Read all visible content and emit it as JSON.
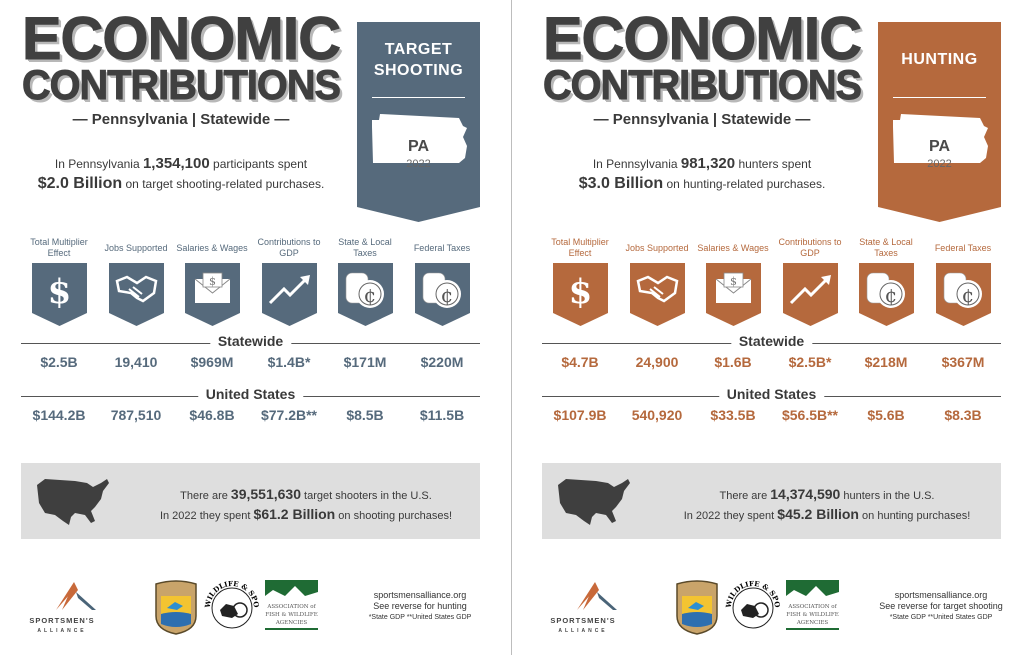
{
  "panels": [
    {
      "id": "target-shooting",
      "accent": "#566a7c",
      "title_line1": "ECONOMIC",
      "title_line2": "CONTRIBUTIONS",
      "subtitle": "— Pennsylvania | Statewide —",
      "intro": {
        "pre": "In Pennsylvania ",
        "count": "1,354,100",
        "mid": " participants spent",
        "amount": "$2.0 Billion",
        "post": " on target shooting-related purchases."
      },
      "banner": {
        "title_lines": [
          "TARGET",
          "SHOOTING"
        ],
        "state": "PA",
        "year": "2022"
      },
      "categories": [
        {
          "label": "Total Multiplier Effect",
          "icon": "dollar-icon"
        },
        {
          "label": "Jobs Supported",
          "icon": "handshake-icon"
        },
        {
          "label": "Salaries & Wages",
          "icon": "envelope-money-icon"
        },
        {
          "label": "Contributions to GDP",
          "icon": "trend-up-icon"
        },
        {
          "label": "State & Local Taxes",
          "icon": "coins-icon"
        },
        {
          "label": "Federal Taxes",
          "icon": "coins-icon"
        }
      ],
      "statewide_label": "Statewide",
      "statewide": [
        "$2.5B",
        "19,410",
        "$969M",
        "$1.4B*",
        "$171M",
        "$220M"
      ],
      "us_label": "United States",
      "us": [
        "$144.2B",
        "787,510",
        "$46.8B",
        "$77.2B**",
        "$8.5B",
        "$11.5B"
      ],
      "us_box": {
        "pre1": "There are ",
        "count": "39,551,630",
        "post1": " target shooters in the U.S.",
        "pre2": "In 2022 they spent ",
        "amount": "$61.2 Billion",
        "post2": " on shooting purchases!"
      },
      "footer": {
        "site": "sportsmensalliance.org",
        "reverse": "See reverse for hunting",
        "note": "*State GDP **United States GDP"
      }
    },
    {
      "id": "hunting",
      "accent": "#b5693d",
      "title_line1": "ECONOMIC",
      "title_line2": "CONTRIBUTIONS",
      "subtitle": "— Pennsylvania | Statewide —",
      "intro": {
        "pre": "In Pennsylvania ",
        "count": "981,320",
        "mid": " hunters spent",
        "amount": "$3.0 Billion",
        "post": " on hunting-related purchases."
      },
      "banner": {
        "title_lines": [
          "HUNTING"
        ],
        "state": "PA",
        "year": "2022"
      },
      "categories": [
        {
          "label": "Total Multiplier Effect",
          "icon": "dollar-icon"
        },
        {
          "label": "Jobs Supported",
          "icon": "handshake-icon"
        },
        {
          "label": "Salaries & Wages",
          "icon": "envelope-money-icon"
        },
        {
          "label": "Contributions to GDP",
          "icon": "trend-up-icon"
        },
        {
          "label": "State & Local Taxes",
          "icon": "coins-icon"
        },
        {
          "label": "Federal Taxes",
          "icon": "coins-icon"
        }
      ],
      "statewide_label": "Statewide",
      "statewide": [
        "$4.7B",
        "24,900",
        "$1.6B",
        "$2.5B*",
        "$218M",
        "$367M"
      ],
      "us_label": "United States",
      "us": [
        "$107.9B",
        "540,920",
        "$33.5B",
        "$56.5B**",
        "$5.6B",
        "$8.3B"
      ],
      "us_box": {
        "pre1": "There are ",
        "count": "14,374,590",
        "post1": " hunters in the U.S.",
        "pre2": "In 2022 they spent ",
        "amount": "$45.2 Billion",
        "post2": " on hunting purchases!"
      },
      "footer": {
        "site": "sportsmensalliance.org",
        "reverse": "See reverse for target shooting",
        "note": "*State GDP **United States GDP"
      }
    }
  ],
  "logos": {
    "sportsmens_alliance": [
      "SPORTSMEN'S",
      "ALLIANCE"
    ],
    "afwa": [
      "ASSOCIATION of",
      "FISH & WILDLIFE",
      "AGENCIES"
    ],
    "wsfr": "WILDLIFE & SPORT FISH RESTORATION"
  }
}
